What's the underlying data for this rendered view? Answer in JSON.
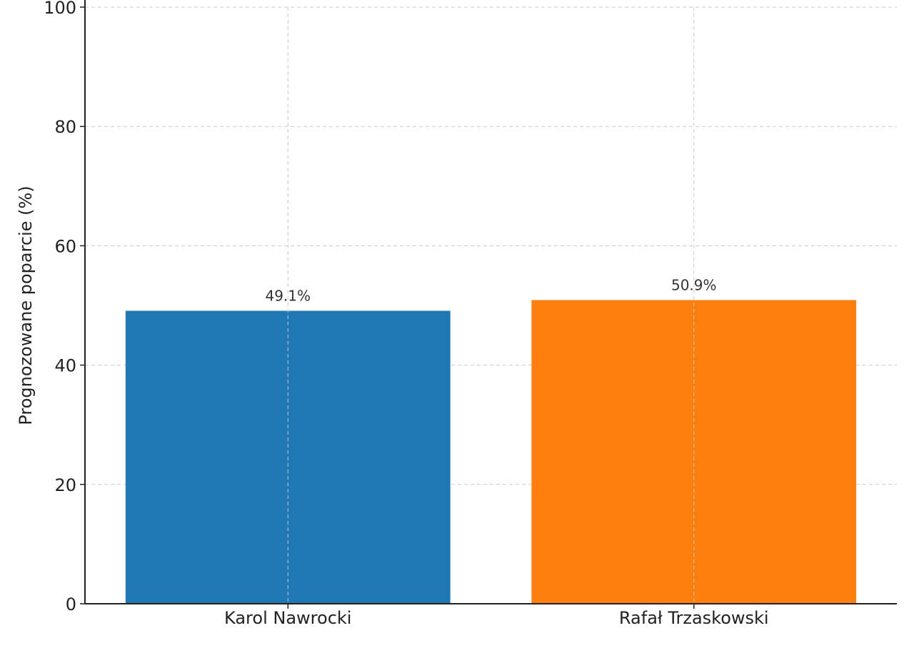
{
  "chart_data": {
    "type": "bar",
    "title": "",
    "xlabel": "",
    "ylabel": "Prognozowane poparcie (%)",
    "categories": [
      "Karol Nawrocki",
      "Rafał Trzaskowski"
    ],
    "values": [
      49.1,
      50.9
    ],
    "data_labels": [
      "49.1%",
      "50.9%"
    ],
    "colors": [
      "#1f77b4",
      "#ff7f0e"
    ],
    "ylim": [
      0,
      100
    ],
    "yticks": [
      0,
      20,
      40,
      60,
      80,
      100
    ],
    "grid": true,
    "legend": "none"
  }
}
